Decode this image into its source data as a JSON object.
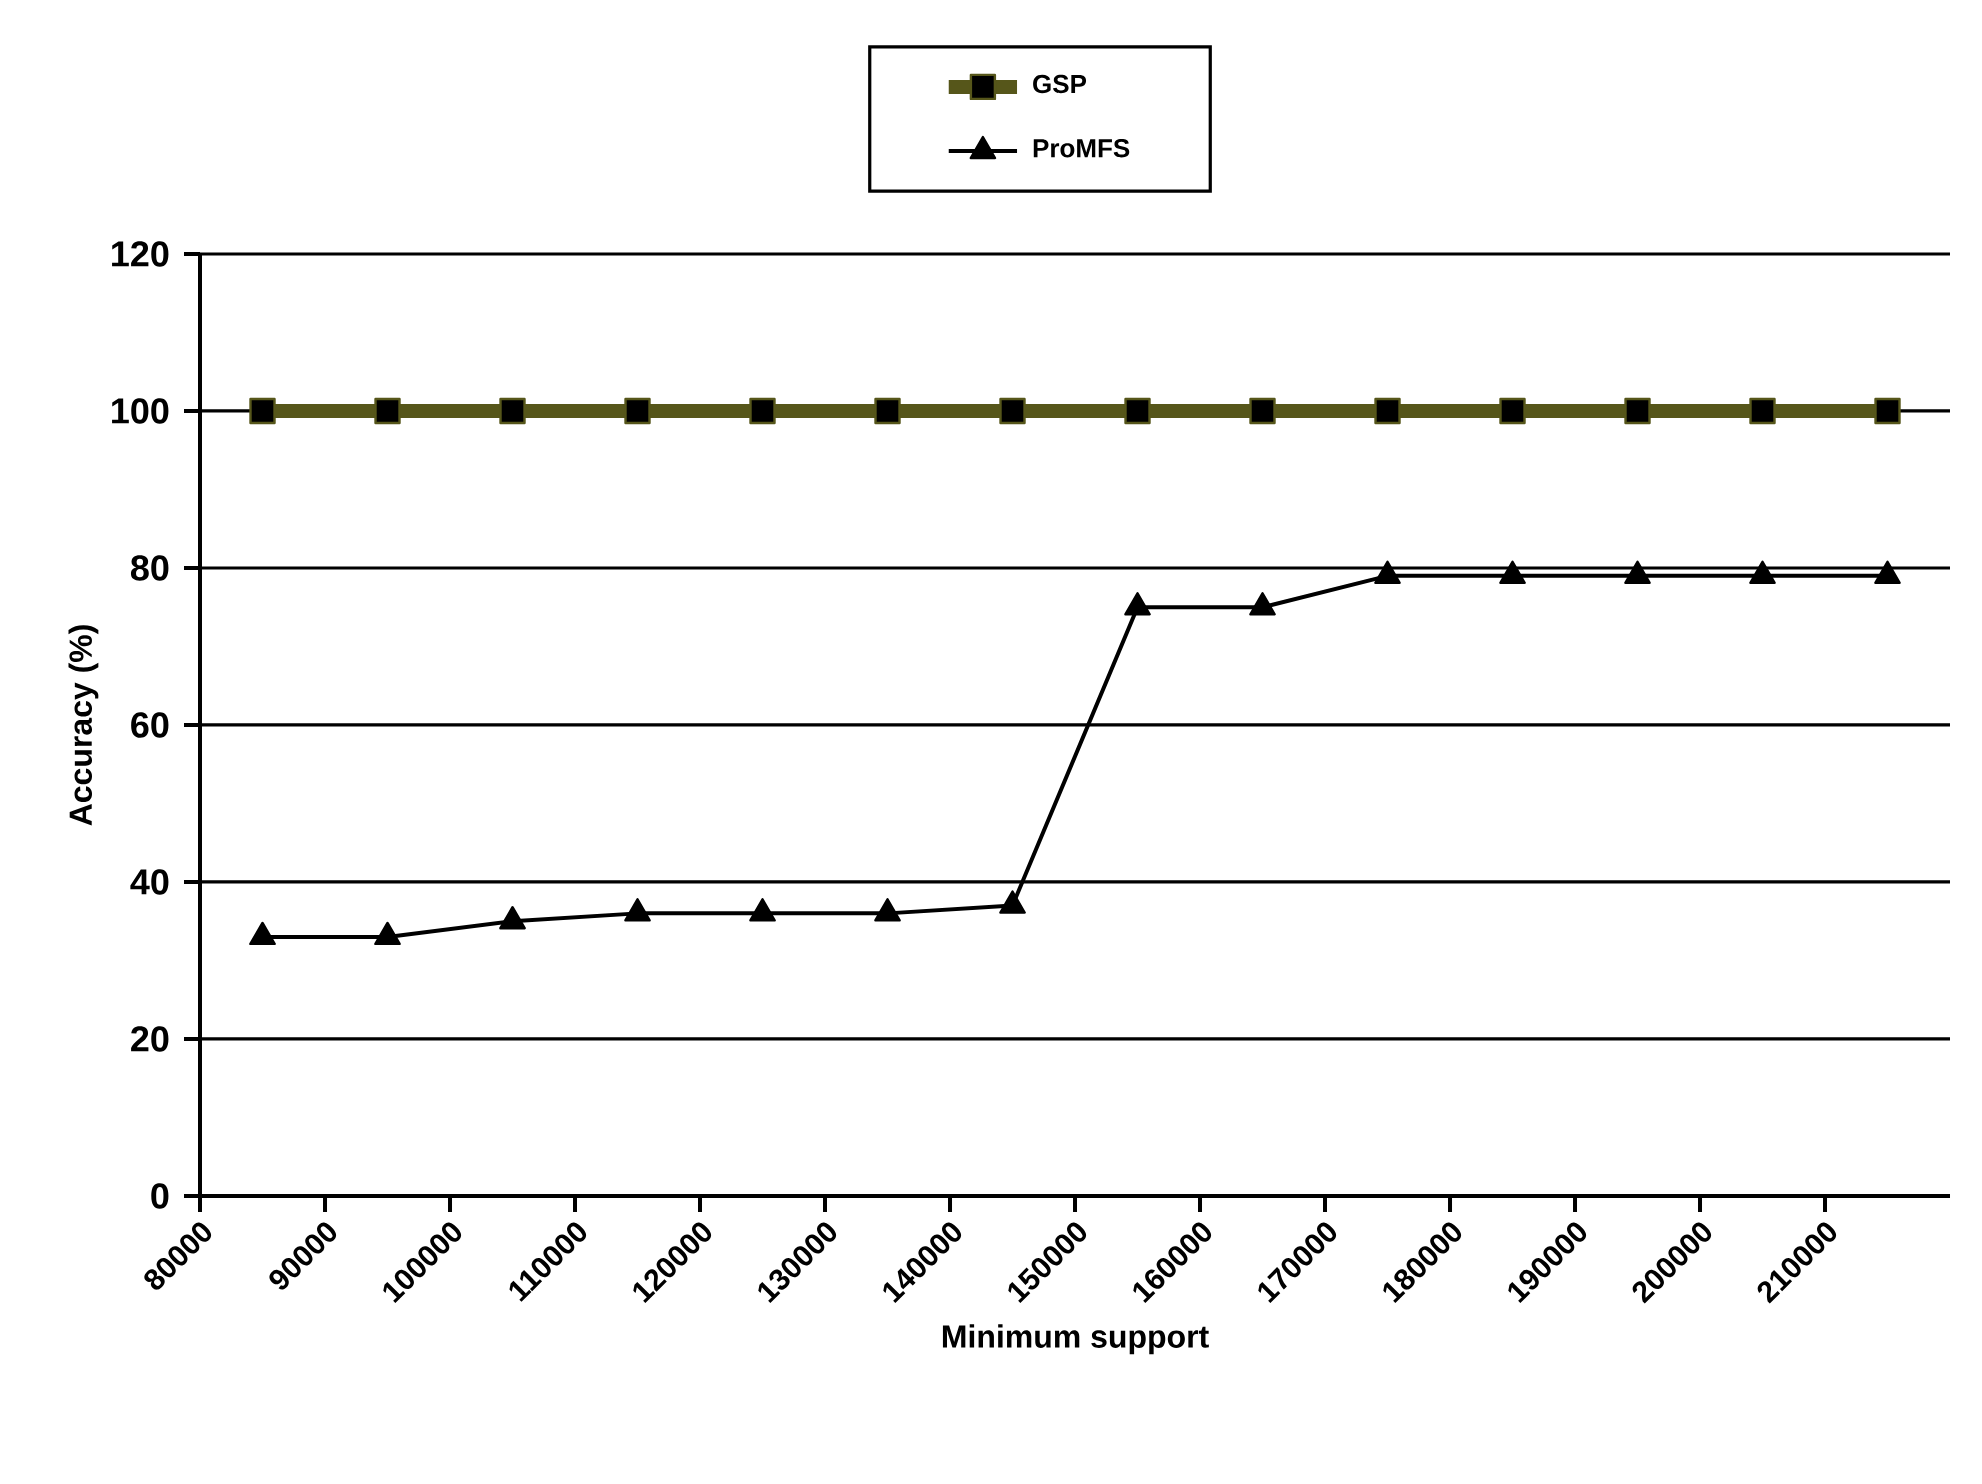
{
  "chart_data": {
    "type": "line",
    "xlabel": "Minimum support",
    "ylabel": "Accuracy (%)",
    "x": [
      85000,
      95000,
      105000,
      115000,
      125000,
      135000,
      145000,
      155000,
      165000,
      175000,
      185000,
      195000,
      205000,
      215000
    ],
    "series": [
      {
        "name": "GSP",
        "color": "#56561a",
        "marker": "square",
        "values": [
          100,
          100,
          100,
          100,
          100,
          100,
          100,
          100,
          100,
          100,
          100,
          100,
          100,
          100
        ]
      },
      {
        "name": "ProMFS",
        "color": "#000000",
        "marker": "triangle",
        "values": [
          33,
          33,
          35,
          36,
          36,
          36,
          37,
          75,
          75,
          79,
          79,
          79,
          79,
          79
        ]
      }
    ],
    "xlim": [
      80000,
      220000
    ],
    "xticks": [
      80000,
      90000,
      100000,
      110000,
      120000,
      130000,
      140000,
      150000,
      160000,
      170000,
      180000,
      190000,
      200000,
      210000
    ],
    "ylim": [
      0,
      120
    ],
    "yticks": [
      0,
      20,
      40,
      60,
      80,
      100,
      120
    ],
    "grid": "y",
    "legend": "top",
    "line_style": "solid"
  }
}
